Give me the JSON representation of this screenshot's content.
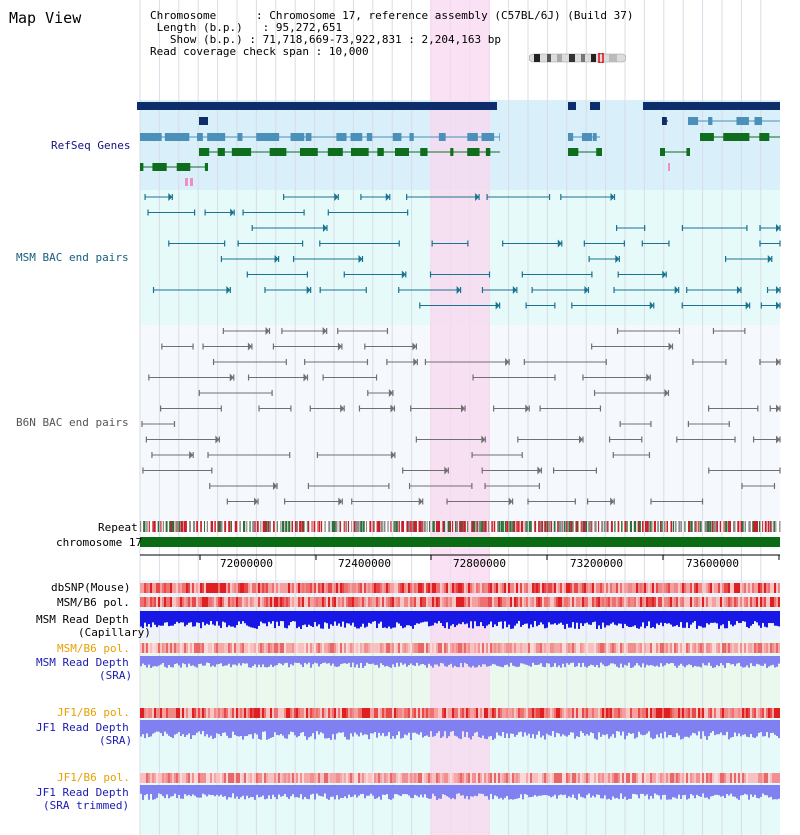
{
  "page": {
    "title": "Map View"
  },
  "info": {
    "chromosome_label": "Chromosome",
    "chromosome_value": "Chromosome 17, reference assembly (C57BL/6J) (Build 37)",
    "length_label": "Length (b.p.)",
    "length_value": "95,272,651",
    "show_label": "Show (b.p.)",
    "show_value": "71,718,669-73,922,831 : 2,204,163 bp",
    "coverage_label": "Read coverage check span",
    "coverage_value": "10,000"
  },
  "tracks": {
    "refseq": "RefSeq Genes",
    "msm_bac": "MSM BAC end pairs",
    "b6n_bac": "B6N BAC end pairs",
    "repeat": "Repeat",
    "chromosome": "chromosome 17",
    "dbsnp": "dbSNP(Mouse)",
    "msm_pol_1": "MSM/B6 pol.",
    "msm_depth_cap_1": "MSM Read Depth",
    "msm_depth_cap_2": "(Capillary)",
    "msm_pol_2": "MSM/B6 pol.",
    "msm_depth_sra_1": "MSM Read Depth",
    "msm_depth_sra_2": "(SRA)",
    "jf1_pol_1": "JF1/B6 pol.",
    "jf1_depth_sra_1": "JF1 Read Depth",
    "jf1_depth_sra_2": "(SRA)",
    "jf1_pol_2": "JF1/B6 pol.",
    "jf1_depth_trim_1": "JF1 Read Depth",
    "jf1_depth_trim_2": "(SRA trimmed)"
  },
  "axis": {
    "ticks": [
      "72000000",
      "72400000",
      "72800000",
      "73200000",
      "73600000"
    ]
  },
  "colors": {
    "refseq_bg": "#d9effa",
    "msm_bg": "#e6fafa",
    "highlight": "#f8d8f0",
    "navy": "#0d2e6b",
    "steel": "#4a90b8",
    "green": "#0f6e1e",
    "teal_line": "#1a7390",
    "gray_line": "#707070",
    "chrom_green": "#0b6a14",
    "depth_blue": "#1818e6",
    "depth_lavender": "#8080f0",
    "snp_red": "#e83030"
  }
}
